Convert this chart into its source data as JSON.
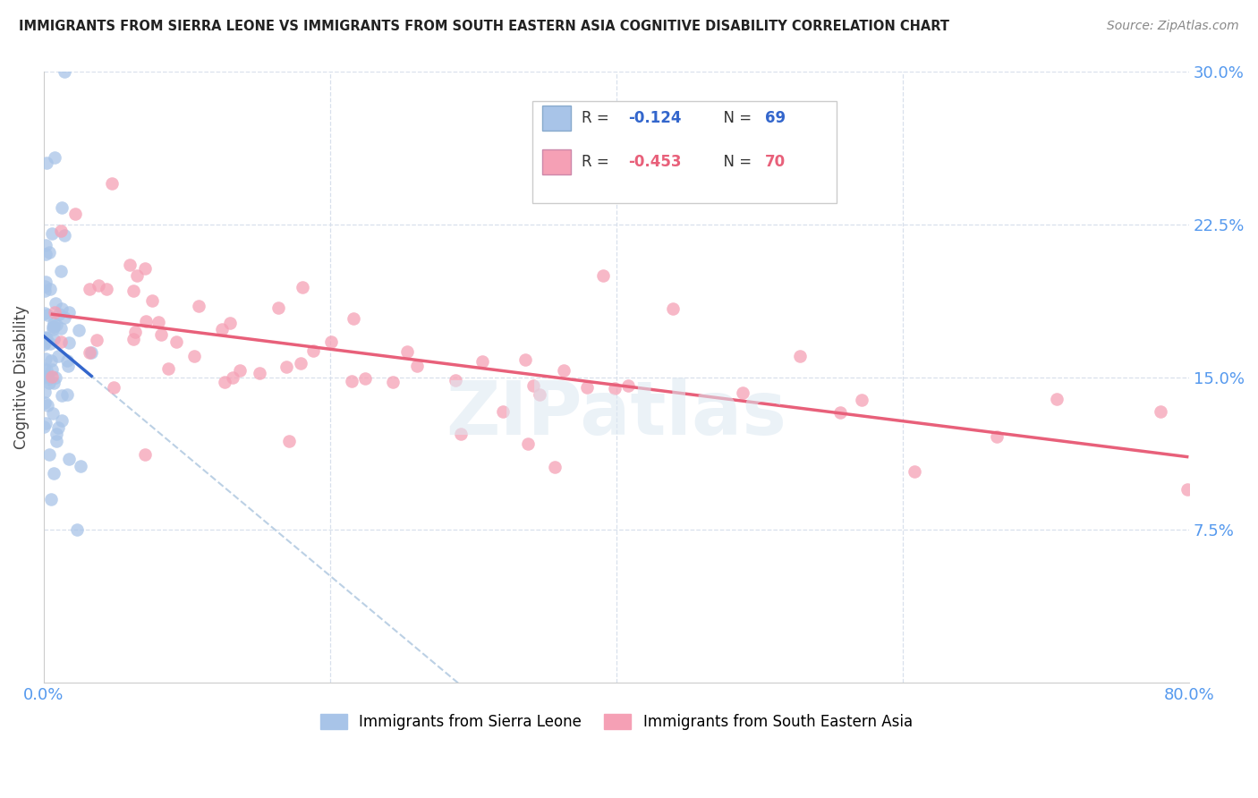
{
  "title": "IMMIGRANTS FROM SIERRA LEONE VS IMMIGRANTS FROM SOUTH EASTERN ASIA COGNITIVE DISABILITY CORRELATION CHART",
  "source": "Source: ZipAtlas.com",
  "ylabel": "Cognitive Disability",
  "x_min": 0.0,
  "x_max": 0.8,
  "y_min": 0.0,
  "y_max": 0.3,
  "legend_r1": "R = -0.124",
  "legend_n1": "N = 69",
  "legend_r2": "R = -0.453",
  "legend_n2": "N = 70",
  "blue_scatter_color": "#a8c4e8",
  "pink_scatter_color": "#f5a0b5",
  "blue_line_color": "#3366cc",
  "pink_line_color": "#e8607a",
  "blue_dashed_color": "#b0c8e0",
  "watermark": "ZIPatlas",
  "grid_color": "#d8e0ec",
  "tick_color": "#5599ee",
  "sl_seed": 17,
  "sea_seed": 42,
  "sl_intercept": 0.175,
  "sl_slope": -1.5,
  "sea_intercept": 0.175,
  "sea_slope": -0.075
}
